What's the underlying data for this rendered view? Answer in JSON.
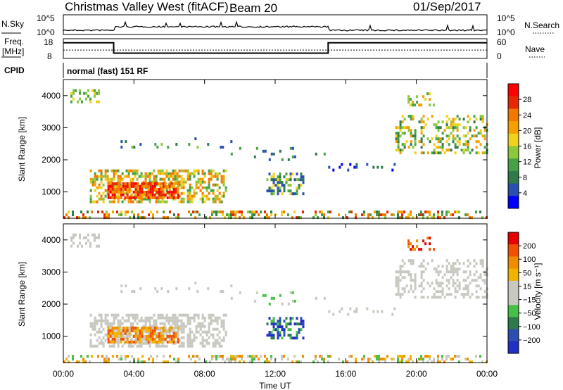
{
  "header": {
    "station": "Christmas Valley West (fitACF)",
    "beam": "Beam 20",
    "date": "01/Sep/2017"
  },
  "noise_panel": {
    "left_label": "N.Sky",
    "right_label": "N.Search",
    "left_ticks": [
      "10^5",
      "10^0"
    ],
    "right_ticks": [
      "10^5",
      "10^0"
    ]
  },
  "freq_panel": {
    "left_label_line1": "Freq.",
    "left_label_line2": "[MHz]",
    "left_ticks": [
      "18",
      "8"
    ],
    "right_label": "Nave",
    "right_ticks": [
      "60",
      "0"
    ]
  },
  "cpid": {
    "label": "CPID",
    "mode": "normal (fast) 151 RF"
  },
  "colors": {
    "power_scale": [
      "#0000ff",
      "#2a4fb0",
      "#2f7a4a",
      "#46a046",
      "#8cc83c",
      "#f0d21e",
      "#f5a000",
      "#f07800",
      "#e62800",
      "#ff0000"
    ],
    "velocity_scale": [
      "#2030c0",
      "#2a4fb0",
      "#2f7a4a",
      "#46c046",
      "#c8c8c0",
      "#c8c8c0",
      "#f0b400",
      "#f08c00",
      "#f05000",
      "#e60000"
    ]
  },
  "chart_data": [
    {
      "type": "heatmap",
      "name": "power",
      "ylabel": "Slant Range [km]",
      "colorbar_label": "Power [dB]",
      "colorbar_ticks": [
        "28",
        "24",
        "20",
        "16",
        "12",
        "8",
        "4"
      ],
      "y_ticks": [
        "4000",
        "3000",
        "2000",
        "1000"
      ],
      "ylim": [
        180,
        4500
      ],
      "xlim": [
        0,
        24
      ]
    },
    {
      "type": "heatmap",
      "name": "velocity",
      "ylabel": "Slant Range [km]",
      "colorbar_label": "Velocity [m s⁻¹]",
      "colorbar_ticks": [
        "200",
        "100",
        "50",
        "15",
        "−15",
        "−50",
        "−100",
        "−200"
      ],
      "y_ticks": [
        "4000",
        "3000",
        "2000",
        "1000"
      ],
      "ylim": [
        180,
        4500
      ],
      "xlim": [
        0,
        24
      ],
      "xlabel": "Time UT",
      "x_ticks": [
        "00:00",
        "04:00",
        "08:00",
        "12:00",
        "16:00",
        "20:00",
        "00:00"
      ]
    }
  ],
  "frequency_series": {
    "hours": [
      0,
      2.85,
      2.85,
      15.0,
      15.0,
      24
    ],
    "mhz": [
      16.2,
      16.2,
      10.5,
      10.5,
      16.2,
      16.2
    ]
  },
  "nave_series": {
    "hours": [
      0,
      24
    ],
    "value": [
      25,
      25
    ]
  }
}
